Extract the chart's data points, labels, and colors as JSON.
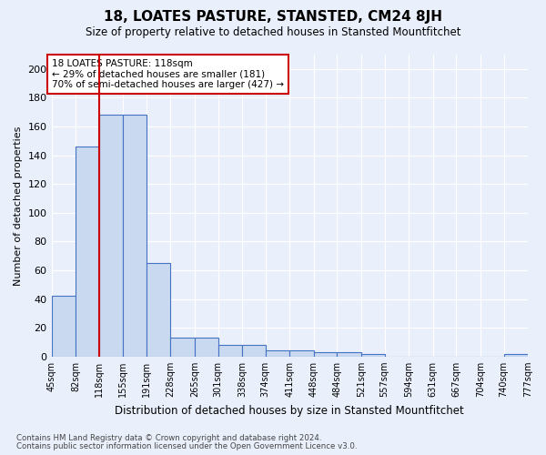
{
  "title": "18, LOATES PASTURE, STANSTED, CM24 8JH",
  "subtitle": "Size of property relative to detached houses in Stansted Mountfitchet",
  "xlabel": "Distribution of detached houses by size in Stansted Mountfitchet",
  "ylabel": "Number of detached properties",
  "footnote1": "Contains HM Land Registry data © Crown copyright and database right 2024.",
  "footnote2": "Contains public sector information licensed under the Open Government Licence v3.0.",
  "annotation_line1": "18 LOATES PASTURE: 118sqm",
  "annotation_line2": "← 29% of detached houses are smaller (181)",
  "annotation_line3": "70% of semi-detached houses are larger (427) →",
  "property_size": 118,
  "bar_edges": [
    45,
    82,
    118,
    155,
    191,
    228,
    265,
    301,
    338,
    374,
    411,
    448,
    484,
    521,
    557,
    594,
    631,
    667,
    704,
    740,
    777
  ],
  "bar_heights": [
    42,
    146,
    168,
    168,
    65,
    13,
    13,
    8,
    8,
    4,
    4,
    3,
    3,
    2,
    0,
    0,
    0,
    0,
    0,
    2
  ],
  "bar_color": "#c9d9f0",
  "bar_edge_color": "#4472c4",
  "red_line_color": "#cc0000",
  "annotation_box_color": "#cc0000",
  "background_color": "#eaf0fb",
  "grid_color": "#ffffff",
  "ylim": [
    0,
    210
  ],
  "yticks": [
    0,
    20,
    40,
    60,
    80,
    100,
    120,
    140,
    160,
    180,
    200
  ]
}
